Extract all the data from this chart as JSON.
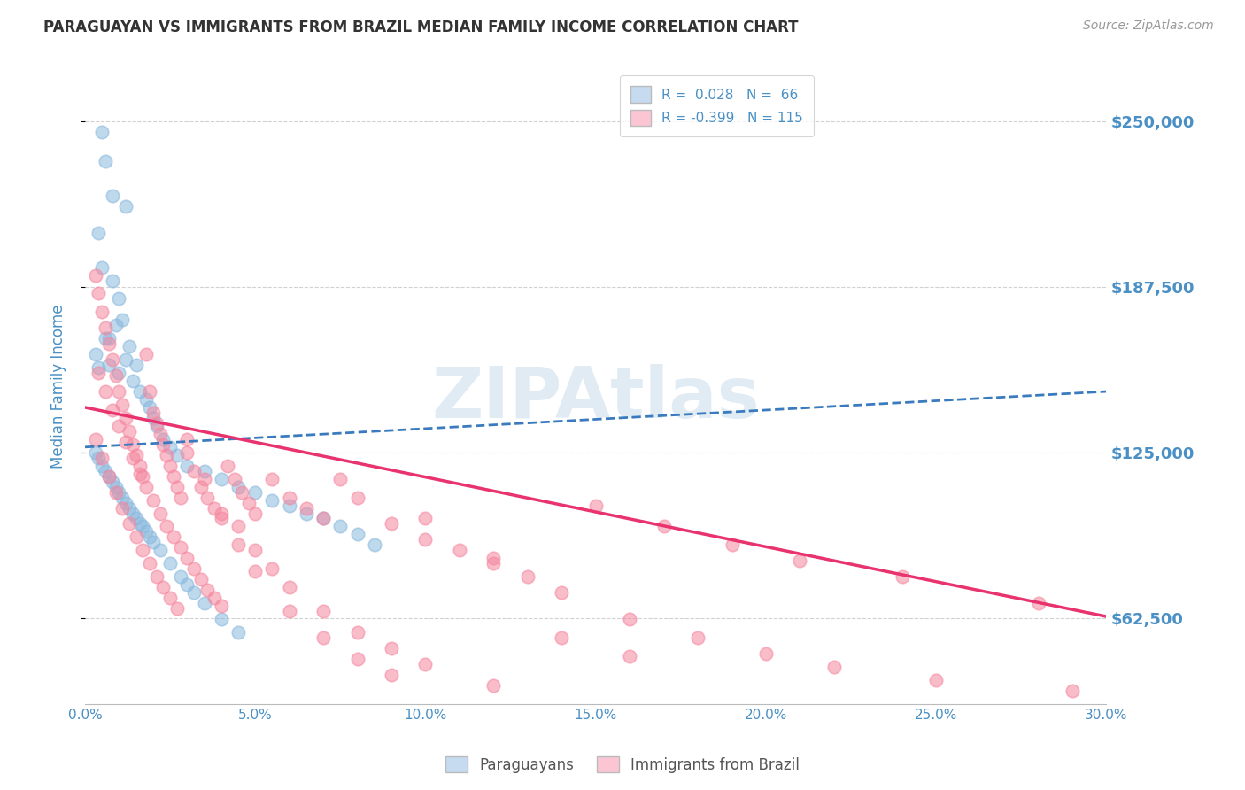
{
  "title": "PARAGUAYAN VS IMMIGRANTS FROM BRAZIL MEDIAN FAMILY INCOME CORRELATION CHART",
  "source": "Source: ZipAtlas.com",
  "ylabel": "Median Family Income",
  "xlim": [
    0.0,
    0.3
  ],
  "ylim": [
    30000,
    270000
  ],
  "xtick_labels": [
    "0.0%",
    "5.0%",
    "10.0%",
    "15.0%",
    "20.0%",
    "25.0%",
    "30.0%"
  ],
  "xtick_values": [
    0.0,
    0.05,
    0.1,
    0.15,
    0.2,
    0.25,
    0.3
  ],
  "ytick_values": [
    62500,
    125000,
    187500,
    250000
  ],
  "ytick_labels": [
    "$62,500",
    "$125,000",
    "$187,500",
    "$250,000"
  ],
  "blue_color": "#89b8de",
  "pink_color": "#f5869e",
  "trend_blue": "#3a7bbf",
  "trend_pink": "#e8336e",
  "blue_fill": "#c6dbef",
  "pink_fill": "#fcc5d4",
  "axis_label_color": "#4a90c4",
  "tick_label_color": "#4a90c4",
  "watermark": "ZIPAtlas",
  "blue_trend_y0": 127000,
  "blue_trend_y1": 148000,
  "pink_trend_y0": 142000,
  "pink_trend_y1": 63000,
  "blue_scatter_x": [
    0.005,
    0.006,
    0.008,
    0.012,
    0.004,
    0.005,
    0.008,
    0.01,
    0.011,
    0.007,
    0.003,
    0.004,
    0.006,
    0.007,
    0.009,
    0.01,
    0.012,
    0.013,
    0.014,
    0.015,
    0.016,
    0.018,
    0.019,
    0.02,
    0.021,
    0.023,
    0.025,
    0.027,
    0.03,
    0.035,
    0.04,
    0.045,
    0.05,
    0.055,
    0.06,
    0.065,
    0.07,
    0.075,
    0.08,
    0.085,
    0.003,
    0.004,
    0.005,
    0.006,
    0.007,
    0.008,
    0.009,
    0.01,
    0.011,
    0.012,
    0.013,
    0.014,
    0.015,
    0.016,
    0.017,
    0.018,
    0.019,
    0.02,
    0.022,
    0.025,
    0.028,
    0.03,
    0.032,
    0.035,
    0.04,
    0.045
  ],
  "blue_scatter_y": [
    246000,
    235000,
    222000,
    218000,
    208000,
    195000,
    190000,
    183000,
    175000,
    168000,
    162000,
    157000,
    168000,
    158000,
    173000,
    155000,
    160000,
    165000,
    152000,
    158000,
    148000,
    145000,
    142000,
    138000,
    135000,
    130000,
    127000,
    124000,
    120000,
    118000,
    115000,
    112000,
    110000,
    107000,
    105000,
    102000,
    100000,
    97000,
    94000,
    90000,
    125000,
    123000,
    120000,
    118000,
    116000,
    114000,
    112000,
    110000,
    108000,
    106000,
    104000,
    102000,
    100000,
    98000,
    97000,
    95000,
    93000,
    91000,
    88000,
    83000,
    78000,
    75000,
    72000,
    68000,
    62000,
    57000
  ],
  "pink_scatter_x": [
    0.003,
    0.004,
    0.005,
    0.006,
    0.007,
    0.008,
    0.009,
    0.01,
    0.011,
    0.012,
    0.013,
    0.014,
    0.015,
    0.016,
    0.017,
    0.018,
    0.019,
    0.02,
    0.021,
    0.022,
    0.023,
    0.024,
    0.025,
    0.026,
    0.027,
    0.028,
    0.03,
    0.032,
    0.034,
    0.036,
    0.038,
    0.04,
    0.042,
    0.044,
    0.046,
    0.048,
    0.05,
    0.055,
    0.06,
    0.065,
    0.07,
    0.075,
    0.08,
    0.09,
    0.1,
    0.11,
    0.12,
    0.13,
    0.15,
    0.17,
    0.19,
    0.21,
    0.24,
    0.28,
    0.004,
    0.006,
    0.008,
    0.01,
    0.012,
    0.014,
    0.016,
    0.018,
    0.02,
    0.022,
    0.024,
    0.026,
    0.028,
    0.03,
    0.032,
    0.034,
    0.036,
    0.038,
    0.04,
    0.045,
    0.05,
    0.055,
    0.06,
    0.07,
    0.08,
    0.09,
    0.1,
    0.12,
    0.14,
    0.16,
    0.003,
    0.005,
    0.007,
    0.009,
    0.011,
    0.013,
    0.015,
    0.017,
    0.019,
    0.021,
    0.023,
    0.025,
    0.027,
    0.03,
    0.035,
    0.04,
    0.045,
    0.05,
    0.06,
    0.07,
    0.08,
    0.09,
    0.1,
    0.12,
    0.14,
    0.16,
    0.18,
    0.2,
    0.22,
    0.25,
    0.29
  ],
  "pink_scatter_y": [
    192000,
    185000,
    178000,
    172000,
    166000,
    160000,
    154000,
    148000,
    143000,
    138000,
    133000,
    128000,
    124000,
    120000,
    116000,
    162000,
    148000,
    140000,
    136000,
    132000,
    128000,
    124000,
    120000,
    116000,
    112000,
    108000,
    125000,
    118000,
    112000,
    108000,
    104000,
    100000,
    120000,
    115000,
    110000,
    106000,
    102000,
    115000,
    108000,
    104000,
    100000,
    115000,
    108000,
    98000,
    92000,
    88000,
    83000,
    78000,
    105000,
    97000,
    90000,
    84000,
    78000,
    68000,
    155000,
    148000,
    141000,
    135000,
    129000,
    123000,
    117000,
    112000,
    107000,
    102000,
    97000,
    93000,
    89000,
    85000,
    81000,
    77000,
    73000,
    70000,
    67000,
    97000,
    88000,
    81000,
    74000,
    65000,
    57000,
    51000,
    45000,
    37000,
    55000,
    48000,
    130000,
    123000,
    116000,
    110000,
    104000,
    98000,
    93000,
    88000,
    83000,
    78000,
    74000,
    70000,
    66000,
    130000,
    115000,
    102000,
    90000,
    80000,
    65000,
    55000,
    47000,
    41000,
    100000,
    85000,
    72000,
    62000,
    55000,
    49000,
    44000,
    39000,
    35000
  ]
}
